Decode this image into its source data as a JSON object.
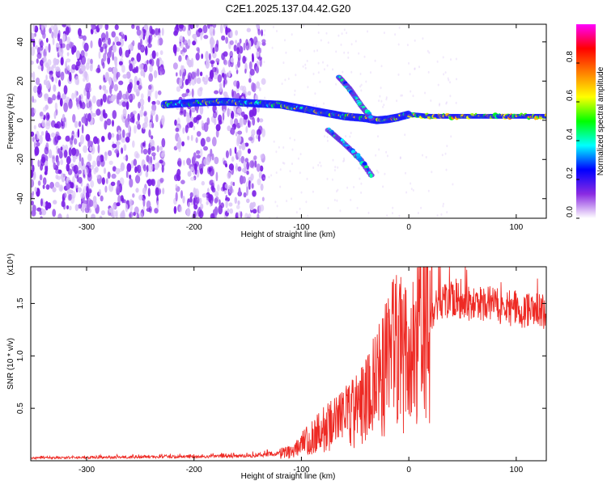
{
  "title": "C2E1.2025.137.04.42.G20",
  "chart_data": [
    {
      "type": "heatmap",
      "xlabel": "Height of straight line (km)",
      "ylabel": "Frequency (Hz)",
      "xlim": [
        -352,
        128
      ],
      "ylim": [
        -50,
        49
      ],
      "x_ticks": [
        -300,
        -200,
        -100,
        0,
        100
      ],
      "y_ticks": [
        -40,
        -20,
        0,
        20,
        40
      ],
      "x_tick_labels": [
        "-300",
        "-200",
        "-100",
        "0",
        "100"
      ],
      "y_tick_labels": [
        "-40",
        "-20",
        "0",
        "20",
        "40"
      ],
      "colorbar": {
        "label": "Normalized spectral amplitude",
        "range": [
          0,
          1
        ],
        "ticks": [
          0.0,
          0.2,
          0.4,
          0.6,
          0.8
        ],
        "tick_labels": [
          "0.0",
          "0.2",
          "0.4",
          "0.6",
          "0.8"
        ],
        "colors": [
          "#ffffff",
          "#8a2be2",
          "#0000ff",
          "#00ffff",
          "#00ff00",
          "#ffff00",
          "#ff8000",
          "#ff0000",
          "#ff00ff"
        ]
      },
      "ridges": [
        {
          "x": [
            -228,
            -200,
            -170,
            -140,
            -120,
            -100,
            -80,
            -60,
            -40,
            -30,
            -20,
            -10,
            0,
            20,
            50,
            80,
            100,
            128
          ],
          "y": [
            8,
            9,
            9.5,
            8.5,
            8,
            6,
            4,
            2,
            1,
            0,
            0.5,
            1.5,
            3,
            2,
            2,
            2,
            2,
            2
          ]
        },
        {
          "x": [
            -65,
            -55,
            -45,
            -35
          ],
          "y": [
            22,
            16,
            8,
            1
          ]
        },
        {
          "x": [
            -75,
            -60,
            -45,
            -35
          ],
          "y": [
            -5,
            -12,
            -20,
            -28
          ]
        }
      ],
      "noise_region_x": [
        -352,
        -135
      ]
    },
    {
      "type": "line",
      "xlabel": "Height of straight line (km)",
      "ylabel": "SNR (10 * v/v)",
      "y_multiplier": "(x10⁴)",
      "xlim": [
        -352,
        128
      ],
      "ylim": [
        0,
        18500
      ],
      "x_ticks": [
        -300,
        -200,
        -100,
        0,
        100
      ],
      "y_ticks": [
        5000,
        10000,
        15000
      ],
      "x_tick_labels": [
        "-300",
        "-200",
        "-100",
        "0",
        "100"
      ],
      "y_tick_labels": [
        "0.5",
        "1.0",
        "1.5"
      ],
      "color": "#ee2a24",
      "envelope": {
        "x": [
          -352,
          -250,
          -150,
          -110,
          -100,
          -80,
          -60,
          -45,
          -30,
          -20,
          -12,
          -5,
          0,
          5,
          10,
          20,
          30,
          40,
          60,
          80,
          100,
          110,
          128
        ],
        "y": [
          250,
          350,
          450,
          800,
          1500,
          3000,
          4000,
          5000,
          7000,
          9000,
          11000,
          10000,
          9000,
          10000,
          12500,
          14000,
          15000,
          15500,
          15000,
          14800,
          14500,
          14300,
          14200
        ]
      }
    }
  ]
}
